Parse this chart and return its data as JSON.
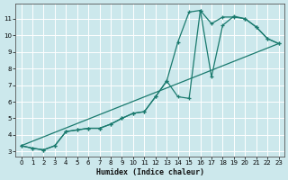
{
  "xlabel": "Humidex (Indice chaleur)",
  "bg_color": "#cce8ec",
  "grid_color": "#b8d8dc",
  "line_color": "#1a7a6e",
  "xlim_min": -0.5,
  "xlim_max": 23.5,
  "ylim_min": 2.7,
  "ylim_max": 11.9,
  "yticks": [
    3,
    4,
    5,
    6,
    7,
    8,
    9,
    10,
    11
  ],
  "xticks": [
    0,
    1,
    2,
    3,
    4,
    5,
    6,
    7,
    8,
    9,
    10,
    11,
    12,
    13,
    14,
    15,
    16,
    17,
    18,
    19,
    20,
    21,
    22,
    23
  ],
  "line1_x": [
    0,
    1,
    2,
    3,
    4,
    5,
    6,
    7,
    8,
    9,
    10,
    11,
    12,
    13,
    14,
    15,
    16,
    17,
    18,
    19,
    20,
    21,
    22,
    23
  ],
  "line1_y": [
    3.35,
    3.2,
    3.1,
    3.35,
    4.2,
    4.3,
    4.4,
    4.4,
    4.65,
    5.0,
    5.3,
    5.4,
    6.3,
    7.25,
    9.6,
    11.4,
    11.5,
    7.5,
    10.6,
    11.15,
    11.0,
    10.5,
    9.8,
    9.5
  ],
  "line2_x": [
    0,
    1,
    2,
    3,
    4,
    5,
    6,
    7,
    8,
    9,
    10,
    11,
    12,
    13,
    14,
    15,
    16,
    17,
    18,
    19,
    20,
    21,
    22,
    23
  ],
  "line2_y": [
    3.35,
    3.2,
    3.1,
    3.35,
    4.2,
    4.3,
    4.4,
    4.4,
    4.65,
    5.0,
    5.3,
    5.4,
    6.3,
    7.25,
    6.3,
    6.2,
    11.5,
    10.7,
    11.1,
    11.1,
    11.0,
    10.5,
    9.8,
    9.5
  ],
  "line3_x": [
    0,
    23
  ],
  "line3_y": [
    3.35,
    9.5
  ]
}
